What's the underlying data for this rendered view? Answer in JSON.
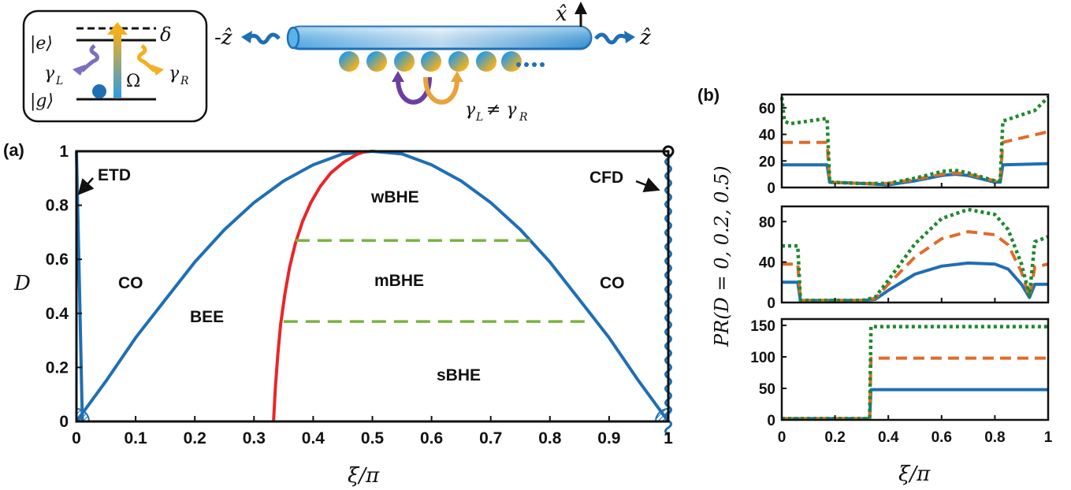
{
  "panel_labels": {
    "a": "(a)",
    "b": "(b)"
  },
  "schematic": {
    "level_e": "|e⟩",
    "level_g": "|g⟩",
    "delta": "δ",
    "omega": "Ω",
    "gamma_L": "γ",
    "gamma_L_sub": "L",
    "gamma_R": "γ",
    "gamma_R_sub": "R",
    "minus_z": "-ẑ",
    "plus_z": "ẑ",
    "x_hat": "x̂",
    "inequality": "γ",
    "inequality_sub_L": "L",
    "inequality_neq": "≠ γ",
    "inequality_sub_R": "R",
    "colors": {
      "blue": "#1f77c4",
      "yellow": "#f2b01e",
      "purple": "#6a3fa0",
      "orange": "#e8a33a"
    }
  },
  "chart_data": [
    {
      "type": "line",
      "id": "phase-diagram",
      "xlabel": "ξ/π",
      "ylabel": "D",
      "xlim": [
        0,
        1
      ],
      "ylim": [
        0,
        1
      ],
      "xticks": [
        "0",
        "0.1",
        "0.2",
        "0.3",
        "0.4",
        "0.5",
        "0.6",
        "0.7",
        "0.8",
        "0.9",
        "1"
      ],
      "yticks": [
        "0",
        "0.2",
        "0.4",
        "0.6",
        "0.8",
        "1"
      ],
      "regions": {
        "CO_left": "CO",
        "CO_right": "CO",
        "BEE": "BEE",
        "wBHE": "wBHE",
        "mBHE": "mBHE",
        "sBHE": "sBHE",
        "ETD": "ETD",
        "CFD": "CFD"
      },
      "series": [
        {
          "color": "#1f6fb4",
          "x": [
            0.0,
            0.005,
            0.01
          ],
          "y": [
            1.0,
            0.5,
            0.0
          ]
        },
        {
          "color": "#1f6fb4",
          "x": [
            0.0,
            0.05,
            0.1,
            0.15,
            0.2,
            0.25,
            0.3,
            0.35,
            0.4,
            0.45,
            0.5,
            0.55,
            0.6,
            0.65,
            0.7,
            0.75,
            0.8,
            0.85,
            0.9,
            0.95,
            1.0
          ],
          "y": [
            0.0,
            0.15,
            0.31,
            0.45,
            0.59,
            0.71,
            0.81,
            0.89,
            0.95,
            0.99,
            1.0,
            0.99,
            0.95,
            0.89,
            0.81,
            0.71,
            0.59,
            0.45,
            0.31,
            0.15,
            0.0
          ]
        },
        {
          "color": "#e8262a",
          "x": [
            0.333,
            0.336,
            0.34,
            0.345,
            0.352,
            0.36,
            0.37,
            0.382,
            0.396,
            0.412,
            0.43,
            0.452,
            0.475,
            0.49
          ],
          "y": [
            0.0,
            0.12,
            0.24,
            0.36,
            0.47,
            0.57,
            0.66,
            0.74,
            0.81,
            0.87,
            0.92,
            0.96,
            0.99,
            1.0
          ]
        },
        {
          "color": "#7ab342",
          "dash": true,
          "x": [
            0.37,
            0.77
          ],
          "y": [
            0.67,
            0.67
          ]
        },
        {
          "color": "#7ab342",
          "dash": true,
          "x": [
            0.35,
            0.86
          ],
          "y": [
            0.37,
            0.37
          ]
        }
      ]
    },
    {
      "type": "line",
      "id": "pr-top",
      "xlim": [
        0,
        1
      ],
      "ylim": [
        0,
        70
      ],
      "yticks": [
        "0",
        "20",
        "40",
        "60"
      ],
      "series": [
        {
          "color": "#1f6fb4",
          "style": "solid",
          "x": [
            0,
            0.17,
            0.18,
            0.3,
            0.4,
            0.5,
            0.6,
            0.65,
            0.7,
            0.8,
            0.82,
            0.83,
            1
          ],
          "y": [
            17,
            17,
            4,
            3,
            2,
            5,
            9,
            10,
            9,
            4,
            4,
            17,
            18
          ]
        },
        {
          "color": "#e06c2a",
          "style": "dash",
          "x": [
            0,
            0.17,
            0.18,
            0.3,
            0.4,
            0.5,
            0.6,
            0.65,
            0.7,
            0.8,
            0.82,
            0.83,
            1
          ],
          "y": [
            34,
            34,
            4,
            3,
            3,
            6,
            10,
            11,
            10,
            5,
            5,
            34,
            42
          ]
        },
        {
          "color": "#1d8a2e",
          "style": "dot",
          "x": [
            0,
            0.01,
            0.03,
            0.17,
            0.18,
            0.3,
            0.4,
            0.5,
            0.6,
            0.65,
            0.7,
            0.8,
            0.82,
            0.83,
            0.95,
            1
          ],
          "y": [
            68,
            50,
            48,
            52,
            4,
            3,
            3,
            7,
            12,
            13,
            11,
            5,
            5,
            50,
            58,
            68
          ]
        }
      ]
    },
    {
      "type": "line",
      "id": "pr-middle",
      "xlim": [
        0,
        1
      ],
      "ylim": [
        0,
        95
      ],
      "yticks": [
        "0",
        "40",
        "80"
      ],
      "series": [
        {
          "color": "#1f6fb4",
          "style": "solid",
          "x": [
            0,
            0.06,
            0.07,
            0.3,
            0.35,
            0.4,
            0.5,
            0.6,
            0.7,
            0.8,
            0.85,
            0.9,
            0.93,
            0.95,
            1
          ],
          "y": [
            20,
            20,
            2,
            2,
            3,
            12,
            28,
            36,
            39,
            38,
            33,
            18,
            5,
            18,
            18
          ]
        },
        {
          "color": "#e06c2a",
          "style": "dash",
          "x": [
            0,
            0.06,
            0.07,
            0.3,
            0.35,
            0.4,
            0.5,
            0.6,
            0.7,
            0.8,
            0.85,
            0.9,
            0.93,
            0.95,
            1
          ],
          "y": [
            38,
            38,
            2,
            2,
            4,
            18,
            45,
            63,
            70,
            67,
            57,
            30,
            6,
            35,
            38
          ]
        },
        {
          "color": "#1d8a2e",
          "style": "dot",
          "x": [
            0,
            0.06,
            0.07,
            0.3,
            0.35,
            0.4,
            0.5,
            0.6,
            0.7,
            0.8,
            0.85,
            0.9,
            0.93,
            0.95,
            1
          ],
          "y": [
            56,
            56,
            2,
            2,
            5,
            22,
            58,
            83,
            92,
            87,
            72,
            38,
            7,
            60,
            65
          ]
        }
      ]
    },
    {
      "type": "line",
      "id": "pr-bottom",
      "xlabel": "ξ/π",
      "ylabel": "PR(D = 0, 0.2, 0.5)",
      "xlim": [
        0,
        1
      ],
      "ylim": [
        0,
        160
      ],
      "xticks": [
        "0",
        "0.2",
        "0.4",
        "0.6",
        "0.8",
        "1"
      ],
      "yticks": [
        "0",
        "50",
        "100",
        "150"
      ],
      "series": [
        {
          "color": "#1f6fb4",
          "style": "solid",
          "x": [
            0,
            0.33,
            0.335,
            1
          ],
          "y": [
            2,
            2,
            48,
            48
          ]
        },
        {
          "color": "#e06c2a",
          "style": "dash",
          "x": [
            0,
            0.33,
            0.335,
            1
          ],
          "y": [
            2,
            2,
            98,
            98
          ]
        },
        {
          "color": "#1d8a2e",
          "style": "dot",
          "x": [
            0,
            0.33,
            0.335,
            1
          ],
          "y": [
            2,
            2,
            148,
            148
          ]
        }
      ]
    }
  ]
}
